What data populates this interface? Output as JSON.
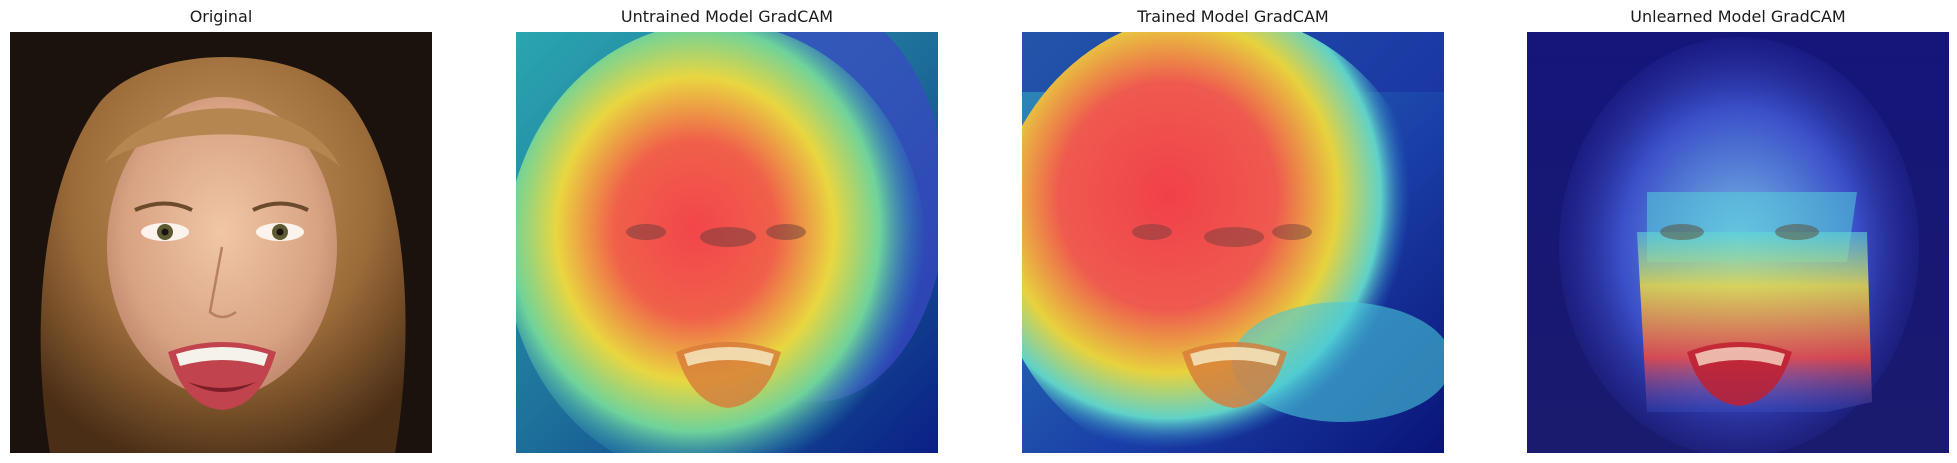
{
  "figure": {
    "panels": [
      {
        "title": "Original",
        "kind": "photo"
      },
      {
        "title": "Untrained Model GradCAM",
        "kind": "gradcam-overlay",
        "heat_focus": "upper-left head and mid face"
      },
      {
        "title": "Trained Model GradCAM",
        "kind": "gradcam-overlay",
        "heat_focus": "forehead, eyes and mouth"
      },
      {
        "title": "Unlearned Model GradCAM",
        "kind": "gradcam-overlay",
        "heat_focus": "mouth and chin band"
      }
    ],
    "colormap": [
      "#00007f",
      "#0000ff",
      "#00ffff",
      "#ffff00",
      "#ff0000"
    ]
  }
}
